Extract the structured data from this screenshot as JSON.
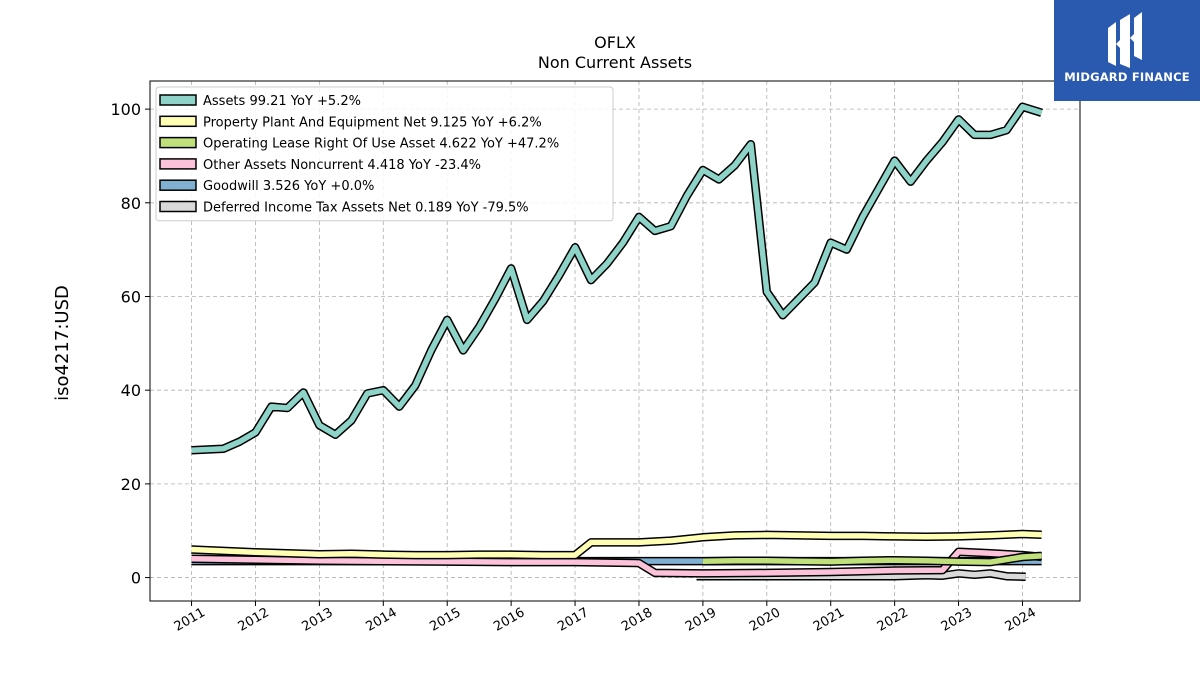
{
  "chart_data": {
    "type": "line",
    "title": "OFLX",
    "subtitle": "Non Current  Assets",
    "ylabel": "iso4217:USD",
    "ylim": [
      -5,
      106
    ],
    "xlim": [
      2010.35,
      2024.9
    ],
    "yticks": [
      0,
      20,
      40,
      60,
      80,
      100
    ],
    "xticks": [
      "2011",
      "2012",
      "2013",
      "2014",
      "2015",
      "2016",
      "2017",
      "2018",
      "2019",
      "2020",
      "2021",
      "2022",
      "2023",
      "2024"
    ],
    "grid": true,
    "legend_position": "top-left",
    "series": [
      {
        "name": "Assets",
        "legend": "Assets  99.21 YoY +5.2%",
        "color": "#8dd3c7",
        "points": [
          [
            2011.0,
            27.2
          ],
          [
            2011.5,
            27.5
          ],
          [
            2011.75,
            29.0
          ],
          [
            2012.0,
            31.0
          ],
          [
            2012.25,
            36.5
          ],
          [
            2012.5,
            36.2
          ],
          [
            2012.75,
            39.5
          ],
          [
            2013.0,
            32.5
          ],
          [
            2013.25,
            30.5
          ],
          [
            2013.5,
            33.5
          ],
          [
            2013.75,
            39.3
          ],
          [
            2014.0,
            40.0
          ],
          [
            2014.25,
            36.5
          ],
          [
            2014.5,
            41.0
          ],
          [
            2014.75,
            48.5
          ],
          [
            2015.0,
            55.0
          ],
          [
            2015.25,
            48.5
          ],
          [
            2015.5,
            53.5
          ],
          [
            2015.75,
            59.5
          ],
          [
            2016.0,
            66.0
          ],
          [
            2016.25,
            55.0
          ],
          [
            2016.5,
            59.0
          ],
          [
            2016.75,
            64.5
          ],
          [
            2017.0,
            70.5
          ],
          [
            2017.25,
            63.5
          ],
          [
            2017.5,
            67.0
          ],
          [
            2017.75,
            71.5
          ],
          [
            2018.0,
            77.0
          ],
          [
            2018.25,
            74.0
          ],
          [
            2018.5,
            75.0
          ],
          [
            2018.75,
            81.5
          ],
          [
            2019.0,
            87.0
          ],
          [
            2019.25,
            85.0
          ],
          [
            2019.5,
            88.0
          ],
          [
            2019.75,
            92.5
          ],
          [
            2020.0,
            61.0
          ],
          [
            2020.25,
            56.0
          ],
          [
            2020.5,
            59.5
          ],
          [
            2020.75,
            63.0
          ],
          [
            2021.0,
            71.5
          ],
          [
            2021.25,
            70.0
          ],
          [
            2021.5,
            77.0
          ],
          [
            2021.75,
            83.0
          ],
          [
            2022.0,
            89.0
          ],
          [
            2022.25,
            84.5
          ],
          [
            2022.5,
            89.0
          ],
          [
            2022.75,
            93.0
          ],
          [
            2023.0,
            97.8
          ],
          [
            2023.25,
            94.5
          ],
          [
            2023.5,
            94.5
          ],
          [
            2023.75,
            95.5
          ],
          [
            2024.0,
            100.5
          ],
          [
            2024.3,
            99.21
          ]
        ]
      },
      {
        "name": "Property Plant And Equipment Net",
        "legend": "Property Plant And Equipment Net  9.125 YoY +6.2%",
        "color": "#ffffb3",
        "points": [
          [
            2011.0,
            6.0
          ],
          [
            2011.5,
            5.7
          ],
          [
            2012.0,
            5.4
          ],
          [
            2012.5,
            5.2
          ],
          [
            2013.0,
            5.0
          ],
          [
            2013.5,
            5.1
          ],
          [
            2014.0,
            4.9
          ],
          [
            2014.5,
            4.8
          ],
          [
            2015.0,
            4.8
          ],
          [
            2015.5,
            4.9
          ],
          [
            2016.0,
            4.9
          ],
          [
            2016.5,
            4.8
          ],
          [
            2017.0,
            4.8
          ],
          [
            2017.25,
            7.5
          ],
          [
            2017.5,
            7.5
          ],
          [
            2018.0,
            7.5
          ],
          [
            2018.5,
            7.9
          ],
          [
            2019.0,
            8.6
          ],
          [
            2019.5,
            9.0
          ],
          [
            2020.0,
            9.1
          ],
          [
            2020.5,
            9.0
          ],
          [
            2021.0,
            8.9
          ],
          [
            2021.5,
            8.9
          ],
          [
            2022.0,
            8.8
          ],
          [
            2022.5,
            8.7
          ],
          [
            2023.0,
            8.8
          ],
          [
            2023.5,
            9.0
          ],
          [
            2024.0,
            9.3
          ],
          [
            2024.3,
            9.125
          ]
        ]
      },
      {
        "name": "Operating Lease Right Of Use Asset",
        "legend": "Operating Lease Right Of Use Asset  4.622 YoY +47.2%",
        "color": "#bfe07a",
        "points": [
          [
            2019.0,
            3.5
          ],
          [
            2019.5,
            3.6
          ],
          [
            2020.0,
            3.6
          ],
          [
            2020.5,
            3.5
          ],
          [
            2021.0,
            3.4
          ],
          [
            2021.5,
            3.6
          ],
          [
            2022.0,
            3.7
          ],
          [
            2022.5,
            3.6
          ],
          [
            2023.0,
            3.4
          ],
          [
            2023.5,
            3.3
          ],
          [
            2024.0,
            4.4
          ],
          [
            2024.3,
            4.622
          ]
        ]
      },
      {
        "name": "Other Assets Noncurrent",
        "legend": "Other Assets Noncurrent  4.418 YoY -23.4%",
        "color": "#fbc2da",
        "points": [
          [
            2011.0,
            4.0
          ],
          [
            2012.0,
            3.8
          ],
          [
            2013.0,
            3.6
          ],
          [
            2014.0,
            3.5
          ],
          [
            2015.0,
            3.4
          ],
          [
            2016.0,
            3.3
          ],
          [
            2017.0,
            3.3
          ],
          [
            2018.0,
            3.1
          ],
          [
            2018.25,
            1.0
          ],
          [
            2019.0,
            0.9
          ],
          [
            2020.0,
            1.0
          ],
          [
            2021.0,
            1.2
          ],
          [
            2022.0,
            1.5
          ],
          [
            2022.75,
            1.6
          ],
          [
            2023.0,
            5.5
          ],
          [
            2023.5,
            5.2
          ],
          [
            2024.0,
            4.8
          ],
          [
            2024.3,
            4.418
          ]
        ]
      },
      {
        "name": "Goodwill",
        "legend": "Goodwill  3.526 YoY +0.0%",
        "color": "#80b1d3",
        "points": [
          [
            2011.0,
            3.526
          ],
          [
            2024.3,
            3.526
          ]
        ]
      },
      {
        "name": "Deferred Income Tax Assets Net",
        "legend": "Deferred Income Tax Assets Net  0.189 YoY -79.5%",
        "color": "#d9d9d9",
        "points": [
          [
            2018.9,
            0.3
          ],
          [
            2019.5,
            0.3
          ],
          [
            2020.0,
            0.3
          ],
          [
            2021.0,
            0.3
          ],
          [
            2022.0,
            0.3
          ],
          [
            2022.5,
            0.5
          ],
          [
            2022.75,
            0.4
          ],
          [
            2023.0,
            0.9
          ],
          [
            2023.25,
            0.6
          ],
          [
            2023.5,
            0.9
          ],
          [
            2023.75,
            0.3
          ],
          [
            2024.05,
            0.189
          ]
        ]
      }
    ]
  },
  "brand": {
    "name": "MIDGARD FINANCE",
    "background": "#2a5ab0"
  }
}
